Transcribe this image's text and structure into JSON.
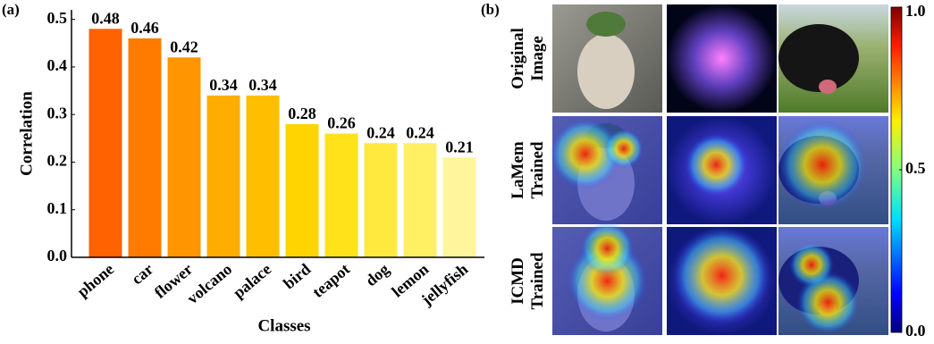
{
  "chart_data": [
    {
      "type": "bar",
      "panel_label": "(a)",
      "x_label": "Classes",
      "y_label": "Correlation",
      "categories": [
        "phone",
        "car",
        "flower",
        "volcano",
        "palace",
        "bird",
        "teapot",
        "dog",
        "lemon",
        "jellyfish"
      ],
      "values": [
        0.48,
        0.46,
        0.42,
        0.34,
        0.34,
        0.28,
        0.26,
        0.24,
        0.24,
        0.21
      ],
      "colors": [
        "#ff6200",
        "#ff7b00",
        "#ff9500",
        "#ffad00",
        "#ffbf00",
        "#ffd400",
        "#ffe21a",
        "#ffe93e",
        "#ffef62",
        "#fff59c"
      ],
      "ylim": [
        0,
        0.52
      ],
      "yticks": [
        {
          "value": 0,
          "label": "0.0"
        },
        0.1,
        0.2,
        0.3,
        0.4,
        0.5
      ]
    },
    {
      "type": "heatmap-grid",
      "panel_label": "(b)",
      "rows": [
        [
          "Original",
          "Image"
        ],
        [
          "LaMem",
          "Trained"
        ],
        [
          "ICMD",
          "Trained"
        ]
      ],
      "clim": [
        0,
        1
      ],
      "cticks": [
        {
          "value": 0,
          "label": "0.0"
        },
        0.5,
        {
          "value": 1,
          "label": "1.0"
        }
      ]
    }
  ]
}
